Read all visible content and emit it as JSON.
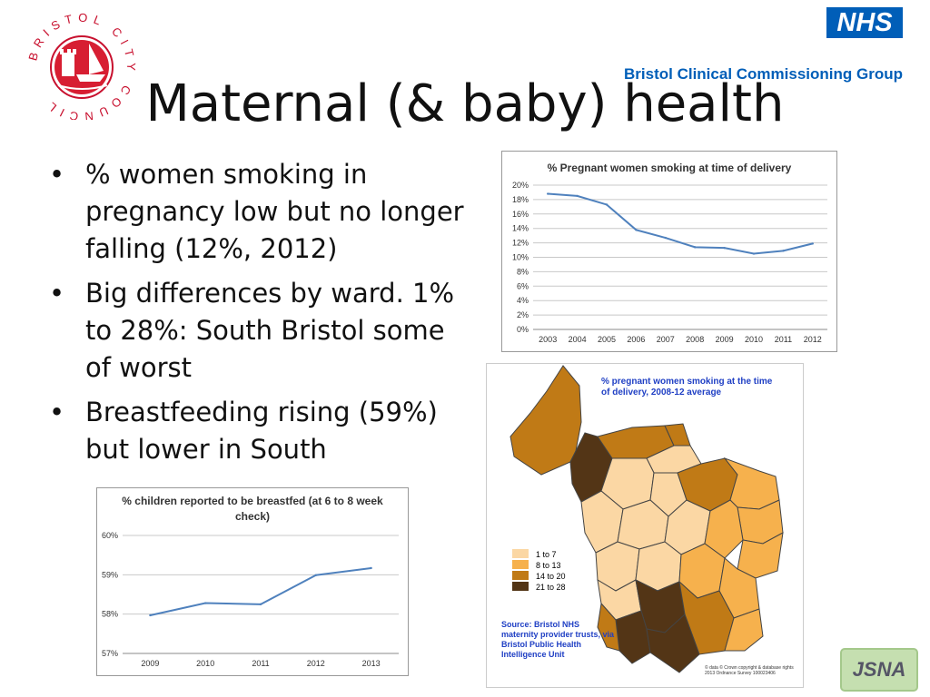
{
  "slide": {
    "title": "Maternal (& baby) health",
    "bullets": [
      "% women smoking in pregnancy low but no longer falling (12%, 2012)",
      "Big differences by ward. 1% to 28%: South Bristol some of worst",
      "Breastfeeding rising (59%) but lower in South"
    ],
    "council_logo_text": "BRISTOL CITY COUNCIL",
    "nhs_logo": "NHS",
    "ccg_name": "Bristol Clinical Commissioning Group",
    "jsna_badge": "JSNA",
    "accent_color": "#005eb8",
    "line_color": "#4f81bd"
  },
  "map": {
    "title": "% pregnant women smoking at the time of delivery, 2008-12 average",
    "legend": [
      {
        "label": "1 to 7",
        "color": "#fbd7a4"
      },
      {
        "label": "8 to 13",
        "color": "#f6b14d"
      },
      {
        "label": "14 to 20",
        "color": "#c07a16"
      },
      {
        "label": "21 to 28",
        "color": "#533516"
      }
    ],
    "source": "Source: Bristol NHS maternity provider trusts, via Bristol Public Health Intelligence Unit",
    "copyright": "© data © Crown copyright & database rights 2013 Ordnance Survey 100023406"
  },
  "chart_data": [
    {
      "type": "line",
      "title": "% Pregnant women smoking at time of delivery",
      "x": [
        "2003",
        "2004",
        "2005",
        "2006",
        "2007",
        "2008",
        "2009",
        "2010",
        "2011",
        "2012"
      ],
      "values": [
        18.8,
        18.5,
        17.3,
        13.8,
        12.7,
        11.4,
        11.3,
        10.5,
        10.9,
        11.9
      ],
      "ylim": [
        0,
        20
      ],
      "yticks": [
        "0%",
        "2%",
        "4%",
        "6%",
        "8%",
        "10%",
        "12%",
        "14%",
        "16%",
        "18%",
        "20%"
      ],
      "grid": true
    },
    {
      "type": "line",
      "title": "% children reported to be breastfed (at 6 to 8 week check)",
      "x": [
        "2009",
        "2010",
        "2011",
        "2012",
        "2013"
      ],
      "values": [
        57.97,
        58.28,
        58.25,
        58.99,
        59.17
      ],
      "ylim": [
        57,
        60
      ],
      "yticks": [
        "57%",
        "58%",
        "59%",
        "60%"
      ],
      "grid": true
    }
  ]
}
